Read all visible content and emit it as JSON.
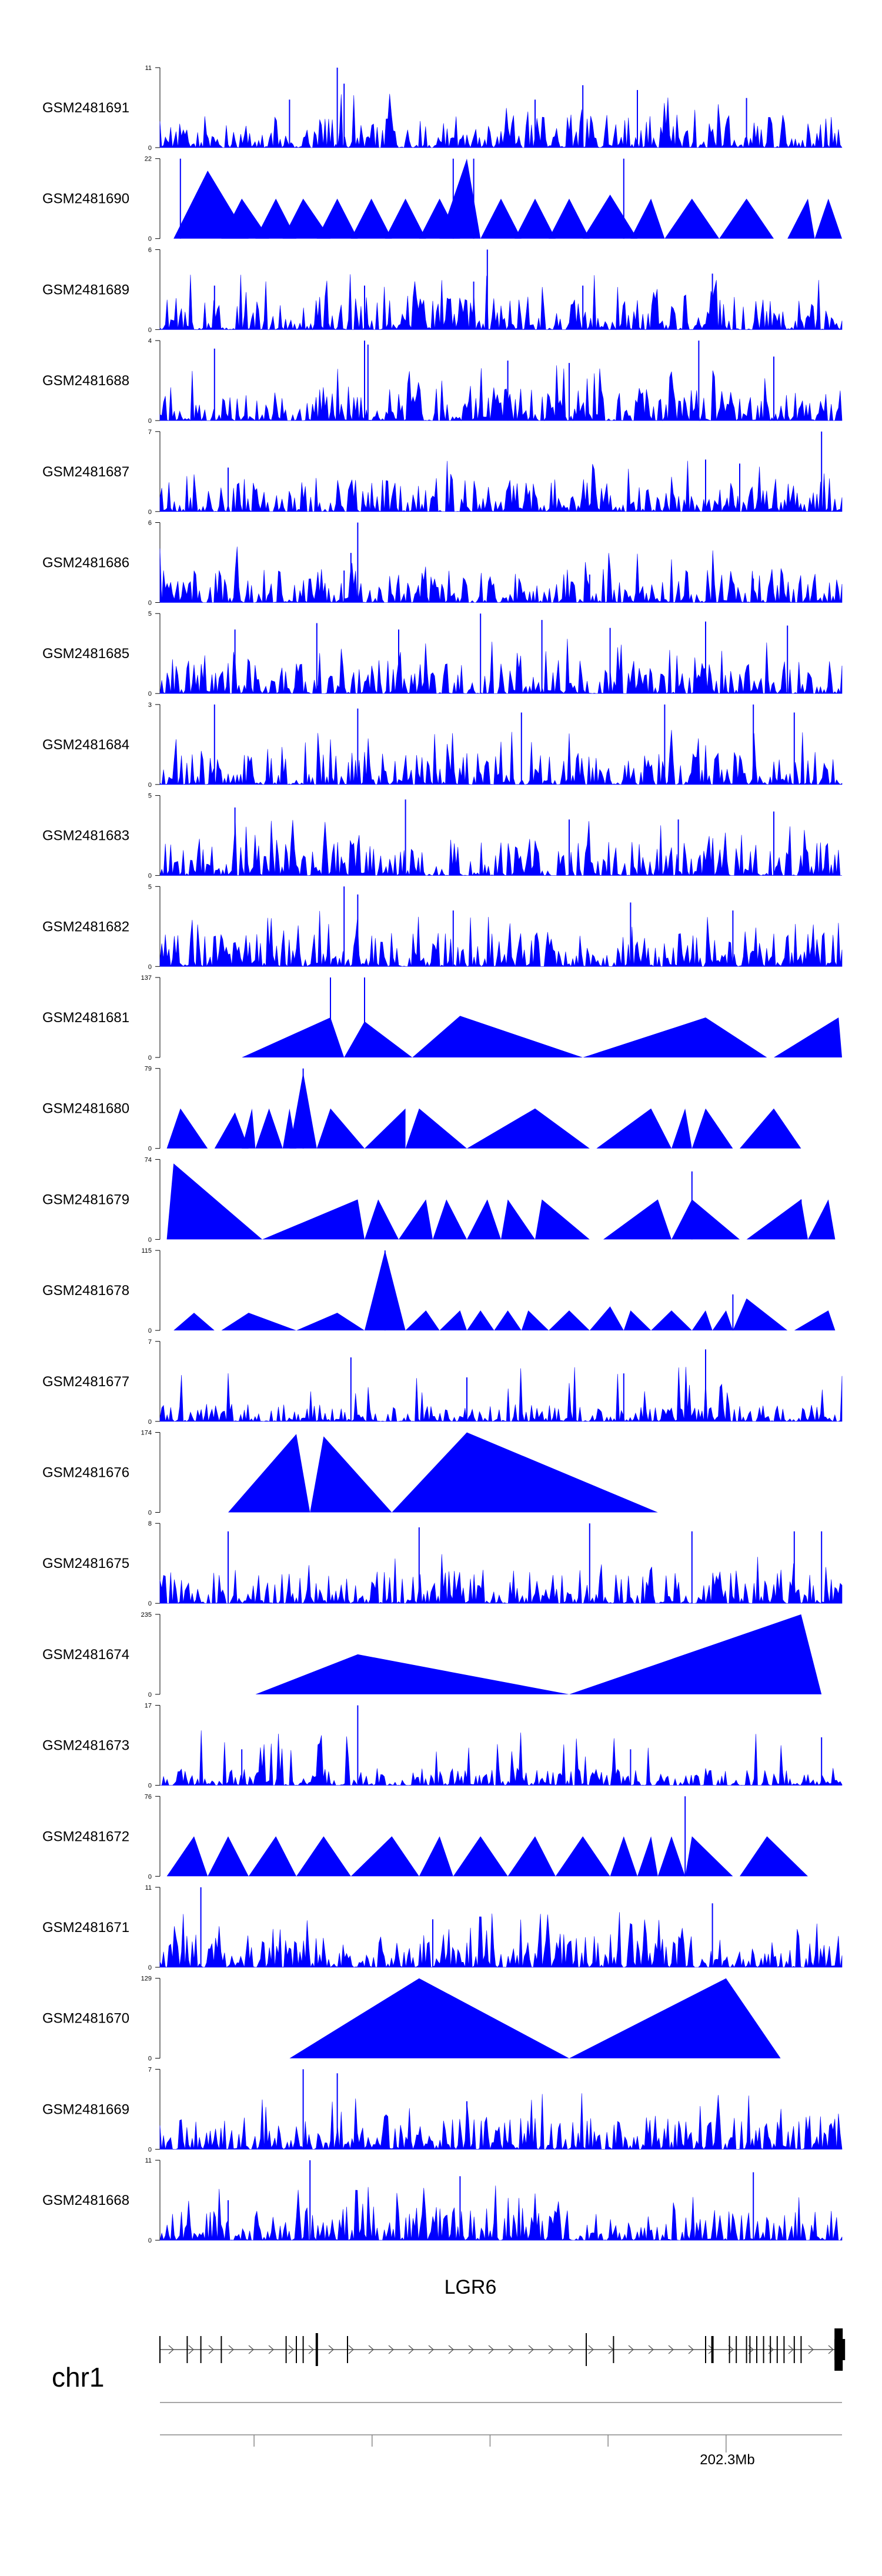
{
  "colors": {
    "signal": "#0000ff",
    "axis": "#000000",
    "gene": "#000000",
    "ideogram": "#888888"
  },
  "chart_data": {
    "type": "area",
    "tracks": [
      {
        "label": "GSM2481691",
        "ymax": "11",
        "ymin": "0",
        "max": 11,
        "style": "dense",
        "seed": 11,
        "peaks": [
          [
            0.26,
            1.0
          ],
          [
            0.27,
            0.8
          ],
          [
            0.62,
            0.78
          ],
          [
            0.7,
            0.72
          ],
          [
            0.55,
            0.6
          ],
          [
            0.86,
            0.62
          ],
          [
            0.19,
            0.6
          ]
        ]
      },
      {
        "label": "GSM2481690",
        "ymax": "22",
        "ymin": "0",
        "max": 22,
        "style": "sparse",
        "seed": 22,
        "peaks": [
          [
            0.03,
            1.0
          ],
          [
            0.43,
            1.0
          ],
          [
            0.46,
            1.0
          ],
          [
            0.68,
            1.0
          ]
        ],
        "tri": [
          [
            0.02,
            0.07,
            0.13,
            0.85
          ],
          [
            0.09,
            0.12,
            0.16,
            0.5
          ],
          [
            0.14,
            0.17,
            0.2,
            0.5
          ],
          [
            0.18,
            0.21,
            0.25,
            0.5
          ],
          [
            0.23,
            0.26,
            0.29,
            0.5
          ],
          [
            0.28,
            0.31,
            0.34,
            0.5
          ],
          [
            0.33,
            0.36,
            0.39,
            0.5
          ],
          [
            0.38,
            0.41,
            0.44,
            0.5
          ],
          [
            0.41,
            0.45,
            0.47,
            1.0
          ],
          [
            0.47,
            0.5,
            0.53,
            0.5
          ],
          [
            0.52,
            0.55,
            0.58,
            0.5
          ],
          [
            0.57,
            0.6,
            0.63,
            0.5
          ],
          [
            0.62,
            0.66,
            0.7,
            0.55
          ],
          [
            0.69,
            0.72,
            0.74,
            0.5
          ],
          [
            0.74,
            0.78,
            0.82,
            0.5
          ],
          [
            0.82,
            0.86,
            0.9,
            0.5
          ],
          [
            0.92,
            0.95,
            0.96,
            0.5
          ],
          [
            0.96,
            0.98,
            1.0,
            0.5
          ]
        ]
      },
      {
        "label": "GSM2481689",
        "ymax": "6",
        "ymin": "0",
        "max": 6,
        "style": "dense",
        "seed": 33,
        "peaks": [
          [
            0.48,
            1.0
          ],
          [
            0.08,
            0.55
          ],
          [
            0.3,
            0.55
          ],
          [
            0.46,
            0.6
          ],
          [
            0.81,
            0.7
          ],
          [
            0.62,
            0.55
          ]
        ]
      },
      {
        "label": "GSM2481688",
        "ymax": "4",
        "ymin": "0",
        "max": 4,
        "style": "dense",
        "seed": 44,
        "peaks": [
          [
            0.3,
            1.0
          ],
          [
            0.305,
            0.95
          ],
          [
            0.79,
            1.0
          ],
          [
            0.08,
            0.9
          ],
          [
            0.51,
            0.75
          ],
          [
            0.6,
            0.72
          ],
          [
            0.9,
            0.8
          ]
        ]
      },
      {
        "label": "GSM2481687",
        "ymax": "7",
        "ymin": "0",
        "max": 7,
        "style": "dense",
        "seed": 55,
        "peaks": [
          [
            0.97,
            1.0
          ],
          [
            0.1,
            0.55
          ],
          [
            0.8,
            0.65
          ],
          [
            0.85,
            0.6
          ]
        ]
      },
      {
        "label": "GSM2481686",
        "ymax": "6",
        "ymin": "0",
        "max": 6,
        "style": "dense",
        "seed": 66,
        "peaks": [
          [
            0.29,
            1.0
          ],
          [
            0.28,
            0.62
          ],
          [
            0.27,
            0.4
          ],
          [
            0.63,
            0.35
          ],
          [
            0.87,
            0.3
          ]
        ]
      },
      {
        "label": "GSM2481685",
        "ymax": "5",
        "ymin": "0",
        "max": 5,
        "style": "dense",
        "seed": 77,
        "peaks": [
          [
            0.47,
            1.0
          ],
          [
            0.56,
            0.92
          ],
          [
            0.11,
            0.8
          ],
          [
            0.23,
            0.88
          ],
          [
            0.35,
            0.8
          ],
          [
            0.66,
            0.82
          ],
          [
            0.8,
            0.9
          ],
          [
            0.92,
            0.85
          ]
        ]
      },
      {
        "label": "GSM2481684",
        "ymax": "3",
        "ymin": "0",
        "max": 3,
        "style": "dense",
        "seed": 88,
        "peaks": [
          [
            0.08,
            1.0
          ],
          [
            0.29,
            0.95
          ],
          [
            0.53,
            0.9
          ],
          [
            0.74,
            1.0
          ],
          [
            0.87,
            1.0
          ],
          [
            0.93,
            0.9
          ]
        ]
      },
      {
        "label": "GSM2481683",
        "ymax": "5",
        "ymin": "0",
        "max": 5,
        "style": "dense",
        "seed": 99,
        "peaks": [
          [
            0.11,
            0.85
          ],
          [
            0.36,
            0.95
          ],
          [
            0.6,
            0.7
          ],
          [
            0.76,
            0.7
          ],
          [
            0.9,
            0.8
          ]
        ]
      },
      {
        "label": "GSM2481682",
        "ymax": "5",
        "ymin": "0",
        "max": 5,
        "style": "dense",
        "seed": 111,
        "peaks": [
          [
            0.27,
            1.0
          ],
          [
            0.29,
            0.9
          ],
          [
            0.43,
            0.7
          ],
          [
            0.69,
            0.8
          ],
          [
            0.84,
            0.7
          ]
        ]
      },
      {
        "label": "GSM2481681",
        "ymax": "137",
        "ymin": "0",
        "max": 137,
        "style": "sparse",
        "seed": 122,
        "peaks": [
          [
            0.25,
            1.0
          ],
          [
            0.3,
            1.0
          ]
        ],
        "tri": [
          [
            0.12,
            0.25,
            0.27,
            0.5
          ],
          [
            0.27,
            0.3,
            0.37,
            0.45
          ],
          [
            0.37,
            0.44,
            0.62,
            0.52
          ],
          [
            0.62,
            0.8,
            0.89,
            0.5
          ],
          [
            0.9,
            0.995,
            1.0,
            0.5
          ]
        ]
      },
      {
        "label": "GSM2481680",
        "ymax": "79",
        "ymin": "0",
        "max": 79,
        "style": "sparse",
        "seed": 133,
        "peaks": [
          [
            0.21,
            1.0
          ]
        ],
        "tri": [
          [
            0.01,
            0.03,
            0.07,
            0.5
          ],
          [
            0.08,
            0.11,
            0.13,
            0.45
          ],
          [
            0.12,
            0.135,
            0.14,
            0.5
          ],
          [
            0.14,
            0.16,
            0.18,
            0.5
          ],
          [
            0.18,
            0.19,
            0.2,
            0.5
          ],
          [
            0.19,
            0.21,
            0.23,
            0.95
          ],
          [
            0.23,
            0.25,
            0.3,
            0.5
          ],
          [
            0.3,
            0.36,
            0.36,
            0.5
          ],
          [
            0.36,
            0.38,
            0.45,
            0.5
          ],
          [
            0.45,
            0.55,
            0.63,
            0.5
          ],
          [
            0.64,
            0.72,
            0.75,
            0.5
          ],
          [
            0.75,
            0.77,
            0.78,
            0.5
          ],
          [
            0.78,
            0.8,
            0.84,
            0.5
          ],
          [
            0.85,
            0.9,
            0.94,
            0.5
          ]
        ]
      },
      {
        "label": "GSM2481679",
        "ymax": "74",
        "ymin": "0",
        "max": 74,
        "style": "sparse",
        "seed": 144,
        "peaks": [
          [
            0.78,
            0.85
          ],
          [
            0.94,
            0.5
          ]
        ],
        "tri": [
          [
            0.01,
            0.02,
            0.15,
            0.95
          ],
          [
            0.15,
            0.29,
            0.3,
            0.5
          ],
          [
            0.3,
            0.32,
            0.35,
            0.5
          ],
          [
            0.35,
            0.39,
            0.4,
            0.5
          ],
          [
            0.4,
            0.42,
            0.45,
            0.5
          ],
          [
            0.45,
            0.48,
            0.5,
            0.5
          ],
          [
            0.5,
            0.51,
            0.55,
            0.5
          ],
          [
            0.55,
            0.56,
            0.63,
            0.5
          ],
          [
            0.65,
            0.73,
            0.75,
            0.5
          ],
          [
            0.75,
            0.78,
            0.85,
            0.5
          ],
          [
            0.86,
            0.94,
            0.95,
            0.5
          ],
          [
            0.95,
            0.98,
            0.99,
            0.5
          ]
        ]
      },
      {
        "label": "GSM2481678",
        "ymax": "115",
        "ymin": "0",
        "max": 115,
        "style": "sparse",
        "seed": 155,
        "peaks": [
          [
            0.33,
            1.0
          ],
          [
            0.84,
            0.45
          ]
        ],
        "tri": [
          [
            0.02,
            0.05,
            0.08,
            0.22
          ],
          [
            0.09,
            0.13,
            0.2,
            0.22
          ],
          [
            0.2,
            0.26,
            0.3,
            0.22
          ],
          [
            0.3,
            0.33,
            0.36,
            1.0
          ],
          [
            0.36,
            0.39,
            0.41,
            0.25
          ],
          [
            0.41,
            0.44,
            0.45,
            0.25
          ],
          [
            0.45,
            0.47,
            0.49,
            0.25
          ],
          [
            0.49,
            0.51,
            0.53,
            0.25
          ],
          [
            0.53,
            0.54,
            0.57,
            0.25
          ],
          [
            0.57,
            0.6,
            0.63,
            0.25
          ],
          [
            0.63,
            0.66,
            0.68,
            0.3
          ],
          [
            0.68,
            0.69,
            0.72,
            0.25
          ],
          [
            0.72,
            0.75,
            0.78,
            0.25
          ],
          [
            0.78,
            0.8,
            0.81,
            0.25
          ],
          [
            0.81,
            0.83,
            0.84,
            0.25
          ],
          [
            0.84,
            0.86,
            0.92,
            0.4
          ],
          [
            0.93,
            0.98,
            0.99,
            0.25
          ]
        ]
      },
      {
        "label": "GSM2481677",
        "ymax": "7",
        "ymin": "0",
        "max": 7,
        "style": "lowdense",
        "seed": 166,
        "peaks": [
          [
            0.28,
            0.8
          ],
          [
            0.8,
            0.9
          ],
          [
            0.68,
            0.6
          ],
          [
            0.45,
            0.55
          ]
        ]
      },
      {
        "label": "GSM2481676",
        "ymax": "174",
        "ymin": "0",
        "max": 174,
        "style": "sparse",
        "seed": 177,
        "peaks": [],
        "tri": [
          [
            0.1,
            0.2,
            0.22,
            0.98
          ],
          [
            0.22,
            0.24,
            0.34,
            0.95
          ],
          [
            0.34,
            0.45,
            0.73,
            1.0
          ]
        ]
      },
      {
        "label": "GSM2481675",
        "ymax": "8",
        "ymin": "0",
        "max": 8,
        "style": "dense",
        "seed": 188,
        "peaks": [
          [
            0.1,
            0.9
          ],
          [
            0.38,
            0.95
          ],
          [
            0.63,
            1.0
          ],
          [
            0.78,
            0.9
          ],
          [
            0.93,
            0.9
          ],
          [
            0.97,
            0.9
          ]
        ]
      },
      {
        "label": "GSM2481674",
        "ymax": "235",
        "ymin": "0",
        "max": 235,
        "style": "sparse",
        "seed": 199,
        "peaks": [],
        "tri": [
          [
            0.14,
            0.29,
            0.6,
            0.5
          ],
          [
            0.6,
            0.94,
            0.97,
            1.0
          ]
        ]
      },
      {
        "label": "GSM2481673",
        "ymax": "17",
        "ymin": "0",
        "max": 17,
        "style": "lowdense",
        "seed": 211,
        "peaks": [
          [
            0.29,
            1.0
          ],
          [
            0.97,
            0.6
          ],
          [
            0.12,
            0.45
          ],
          [
            0.69,
            0.45
          ]
        ]
      },
      {
        "label": "GSM2481672",
        "ymax": "76",
        "ymin": "0",
        "max": 76,
        "style": "sparse",
        "seed": 222,
        "peaks": [
          [
            0.77,
            1.0
          ]
        ],
        "tri": [
          [
            0.01,
            0.05,
            0.07,
            0.5
          ],
          [
            0.07,
            0.1,
            0.13,
            0.5
          ],
          [
            0.13,
            0.17,
            0.2,
            0.5
          ],
          [
            0.2,
            0.24,
            0.28,
            0.5
          ],
          [
            0.28,
            0.34,
            0.38,
            0.5
          ],
          [
            0.38,
            0.41,
            0.43,
            0.5
          ],
          [
            0.43,
            0.47,
            0.51,
            0.5
          ],
          [
            0.51,
            0.55,
            0.58,
            0.5
          ],
          [
            0.58,
            0.62,
            0.66,
            0.5
          ],
          [
            0.66,
            0.68,
            0.7,
            0.5
          ],
          [
            0.7,
            0.72,
            0.73,
            0.5
          ],
          [
            0.73,
            0.75,
            0.77,
            0.5
          ],
          [
            0.77,
            0.78,
            0.84,
            0.5
          ],
          [
            0.85,
            0.89,
            0.95,
            0.5
          ]
        ]
      },
      {
        "label": "GSM2481671",
        "ymax": "11",
        "ymin": "0",
        "max": 11,
        "style": "dense",
        "seed": 233,
        "peaks": [
          [
            0.06,
            1.0
          ],
          [
            0.81,
            0.8
          ],
          [
            0.4,
            0.6
          ]
        ]
      },
      {
        "label": "GSM2481670",
        "ymax": "129",
        "ymin": "0",
        "max": 129,
        "style": "sparse",
        "seed": 244,
        "peaks": [],
        "tri": [
          [
            0.19,
            0.38,
            0.6,
            1.0
          ],
          [
            0.6,
            0.83,
            0.91,
            1.0
          ]
        ]
      },
      {
        "label": "GSM2481669",
        "ymax": "7",
        "ymin": "0",
        "max": 7,
        "style": "dense",
        "seed": 255,
        "peaks": [
          [
            0.21,
            1.0
          ],
          [
            0.26,
            0.95
          ],
          [
            0.45,
            0.6
          ]
        ]
      },
      {
        "label": "GSM2481668",
        "ymax": "11",
        "ymin": "0",
        "max": 11,
        "style": "dense",
        "seed": 266,
        "peaks": [
          [
            0.22,
            1.0
          ],
          [
            0.44,
            0.8
          ],
          [
            0.87,
            0.85
          ],
          [
            0.1,
            0.5
          ]
        ]
      }
    ],
    "gene": {
      "name": "LGR6",
      "exons": [
        0.0,
        0.04,
        0.06,
        0.09,
        0.185,
        0.2,
        0.21,
        0.23,
        0.275,
        0.625,
        0.665,
        0.8,
        0.81,
        0.835,
        0.845,
        0.86,
        0.865,
        0.875,
        0.885,
        0.895,
        0.905,
        0.915,
        0.93,
        0.94,
        0.995
      ]
    },
    "chromosome": "chr1",
    "ruler": {
      "ticks": [
        0.138,
        0.311,
        0.484,
        0.657,
        0.83
      ],
      "major_tick": 0.83,
      "major_label": "202.3Mb"
    }
  }
}
